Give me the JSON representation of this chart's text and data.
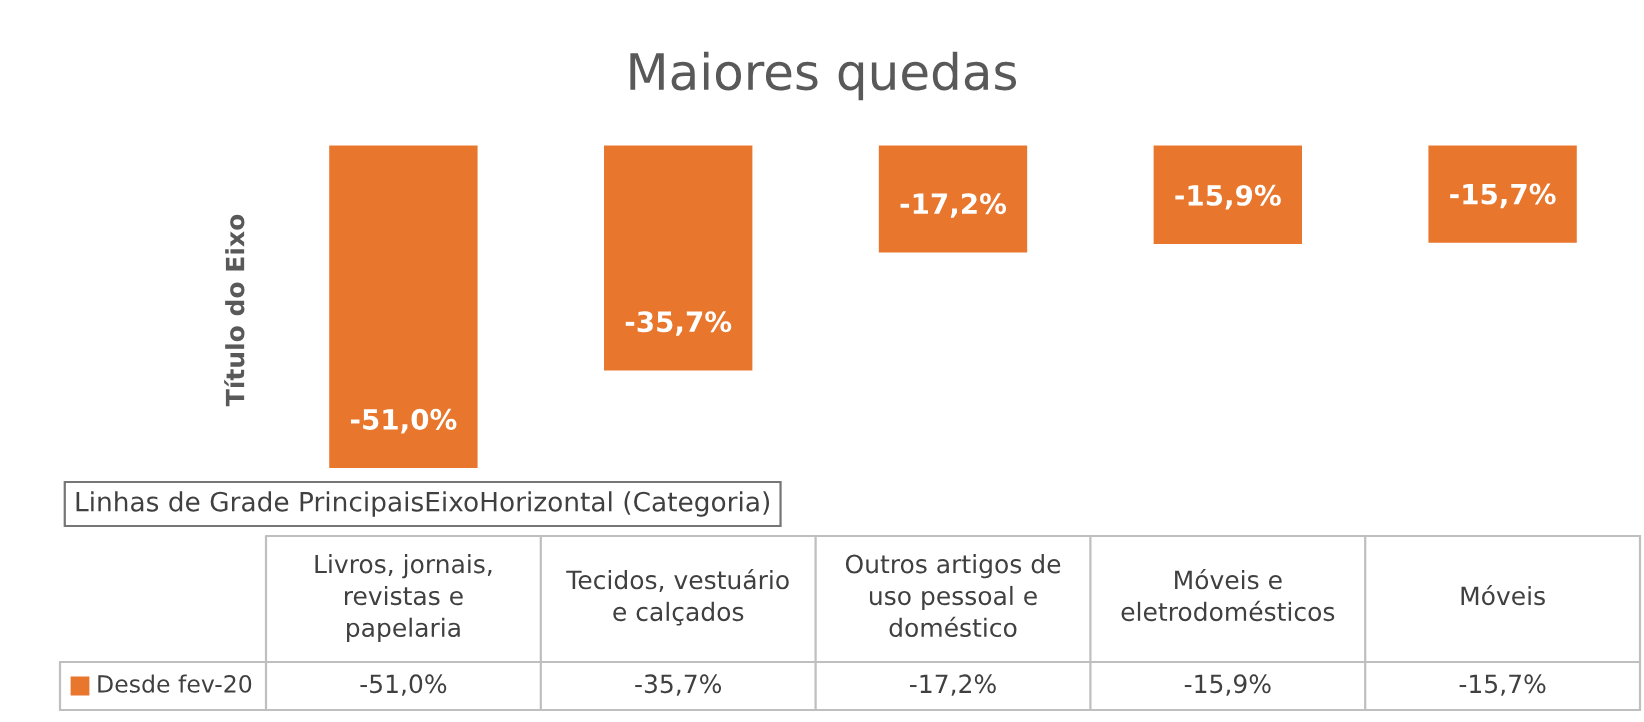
{
  "chart_data": {
    "type": "bar",
    "title": "Maiores quedas",
    "ylabel": "Título do Eixo",
    "categories": [
      "Livros, jornais, revistas e papelaria",
      "Tecidos, vestuário e calçados",
      "Outros artigos de uso pessoal e doméstico",
      "Móveis e eletrodomésticos",
      "Móveis"
    ],
    "series": [
      {
        "name": "Desde fev-20",
        "color": "#e8762d",
        "values": [
          -51.0,
          -35.7,
          -17.2,
          -15.9,
          -15.7
        ],
        "value_labels": [
          "-51,0%",
          "-35,7%",
          "-17,2%",
          "-15,9%",
          "-15,7%"
        ]
      }
    ],
    "annotations": [
      "Linhas de Grade PrincipaisEixoHorizontal (Categoria)"
    ]
  }
}
